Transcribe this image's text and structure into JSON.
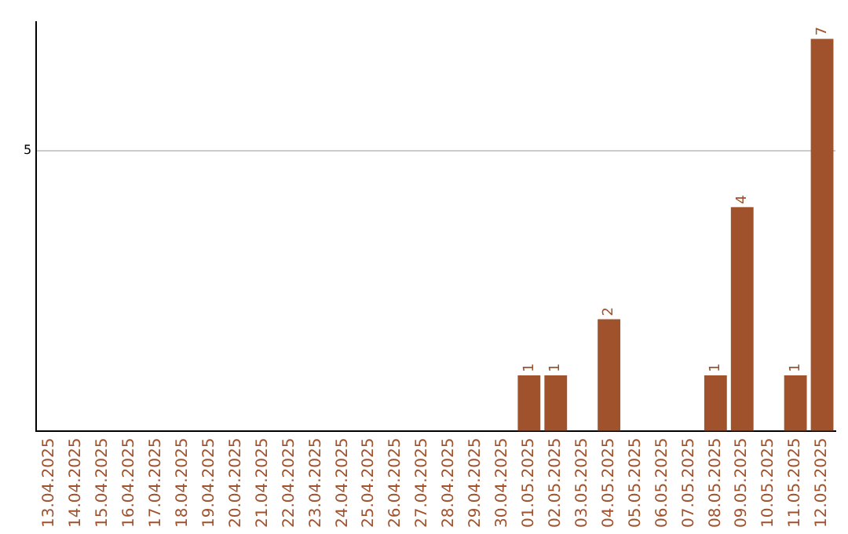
{
  "chart_data": {
    "type": "bar",
    "categories": [
      "13.04.2025",
      "14.04.2025",
      "15.04.2025",
      "16.04.2025",
      "17.04.2025",
      "18.04.2025",
      "19.04.2025",
      "20.04.2025",
      "21.04.2025",
      "22.04.2025",
      "23.04.2025",
      "24.04.2025",
      "25.04.2025",
      "26.04.2025",
      "27.04.2025",
      "28.04.2025",
      "29.04.2025",
      "30.04.2025",
      "01.05.2025",
      "02.05.2025",
      "03.05.2025",
      "04.05.2025",
      "05.05.2025",
      "06.05.2025",
      "07.05.2025",
      "08.05.2025",
      "09.05.2025",
      "10.05.2025",
      "11.05.2025",
      "12.05.2025"
    ],
    "values": [
      null,
      null,
      null,
      null,
      null,
      null,
      null,
      null,
      null,
      null,
      null,
      null,
      null,
      null,
      null,
      null,
      null,
      null,
      1,
      1,
      null,
      2,
      null,
      null,
      null,
      1,
      4,
      null,
      1,
      7
    ],
    "data_labels": true,
    "color": "#a0522d",
    "ylim": [
      0,
      7.3
    ],
    "yticks": [
      {
        "value": 0,
        "label": null
      },
      5
    ],
    "grid": "y",
    "legend": false
  }
}
